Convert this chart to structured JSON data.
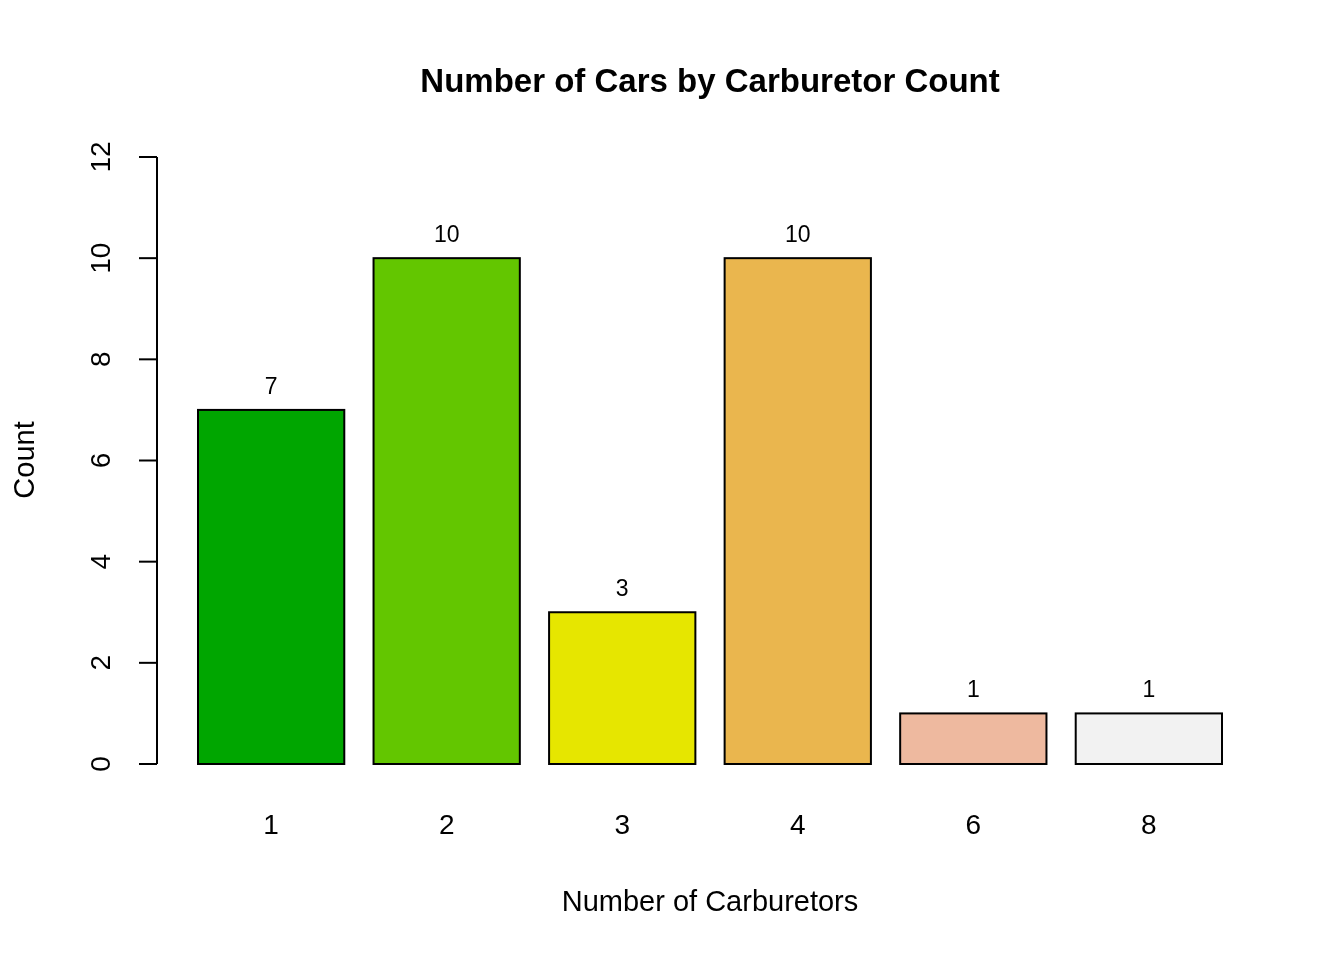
{
  "chart_data": {
    "type": "bar",
    "title": "Number of Cars by Carburetor Count",
    "xlabel": "Number of Carburetors",
    "ylabel": "Count",
    "categories": [
      "1",
      "2",
      "3",
      "4",
      "6",
      "8"
    ],
    "values": [
      7,
      10,
      3,
      10,
      1,
      1
    ],
    "colors": [
      "#00a600",
      "#63c600",
      "#e6e600",
      "#eab64e",
      "#eeb99f",
      "#f2f2f2"
    ],
    "ylim": [
      0,
      12
    ],
    "yticks": [
      0,
      2,
      4,
      6,
      8,
      10,
      12
    ],
    "data_labels": true
  }
}
